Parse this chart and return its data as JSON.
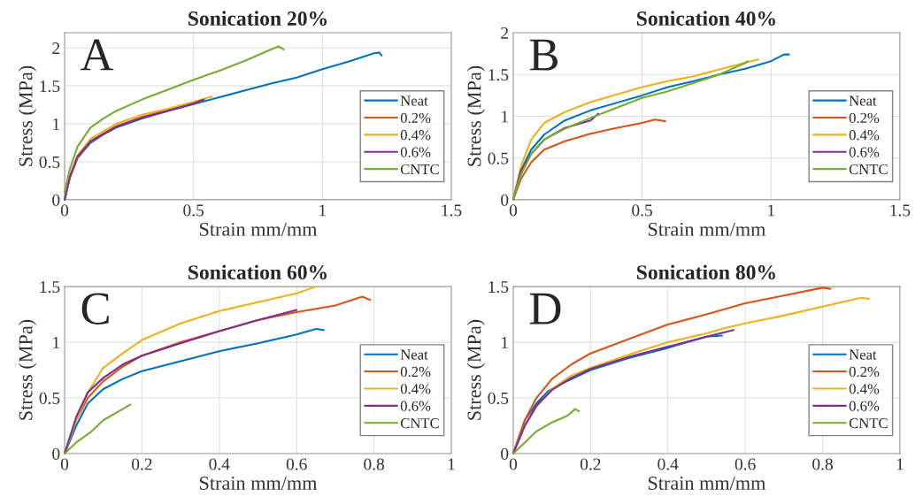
{
  "chart_data": [
    {
      "type": "line",
      "title": "Sonication 20%",
      "xlabel": "Strain mm/mm",
      "ylabel": "Stress (MPa)",
      "annotations": [
        "A"
      ],
      "xlim": [
        0,
        1.5
      ],
      "xticks": [
        0,
        0.5,
        1,
        1.5
      ],
      "ylim": [
        0,
        2.2
      ],
      "yticks": [
        0,
        0.5,
        1,
        1.5,
        2
      ],
      "grid": true,
      "legend": "right",
      "line_style": "solid",
      "series": [
        {
          "name": "Neat",
          "color": "#0072bd",
          "x": [
            0,
            0.02,
            0.05,
            0.1,
            0.15,
            0.2,
            0.3,
            0.4,
            0.5,
            0.6,
            0.7,
            0.8,
            0.9,
            1.0,
            1.1,
            1.2,
            1.22,
            1.23
          ],
          "values": [
            0,
            0.3,
            0.55,
            0.75,
            0.86,
            0.95,
            1.07,
            1.17,
            1.26,
            1.35,
            1.44,
            1.53,
            1.61,
            1.72,
            1.82,
            1.93,
            1.94,
            1.9
          ]
        },
        {
          "name": "0.2%",
          "color": "#d95319",
          "x": [
            0,
            0.02,
            0.05,
            0.1,
            0.2,
            0.3,
            0.4,
            0.5,
            0.53
          ],
          "values": [
            0,
            0.28,
            0.55,
            0.77,
            0.97,
            1.09,
            1.18,
            1.28,
            1.3
          ]
        },
        {
          "name": "0.4%",
          "color": "#edb120",
          "x": [
            0,
            0.02,
            0.05,
            0.1,
            0.2,
            0.3,
            0.4,
            0.5,
            0.57
          ],
          "values": [
            0,
            0.3,
            0.58,
            0.8,
            1.0,
            1.12,
            1.2,
            1.29,
            1.36
          ]
        },
        {
          "name": "0.6%",
          "color": "#7e2f8e",
          "x": [
            0,
            0.02,
            0.05,
            0.1,
            0.2,
            0.3,
            0.4,
            0.5,
            0.54
          ],
          "values": [
            0,
            0.3,
            0.57,
            0.77,
            0.96,
            1.08,
            1.17,
            1.27,
            1.32
          ]
        },
        {
          "name": "CNTC",
          "color": "#77ac30",
          "x": [
            0,
            0.02,
            0.05,
            0.1,
            0.15,
            0.2,
            0.3,
            0.4,
            0.5,
            0.6,
            0.7,
            0.8,
            0.83,
            0.85
          ],
          "values": [
            0.1,
            0.4,
            0.7,
            0.95,
            1.07,
            1.17,
            1.32,
            1.45,
            1.58,
            1.7,
            1.83,
            1.98,
            2.02,
            1.98
          ]
        }
      ]
    },
    {
      "type": "line",
      "title": "Sonication 40%",
      "xlabel": "Strain mm/mm",
      "ylabel": "Stress (MPa)",
      "annotations": [
        "B"
      ],
      "xlim": [
        0,
        1.5
      ],
      "xticks": [
        0,
        0.5,
        1,
        1.5
      ],
      "ylim": [
        0,
        2
      ],
      "yticks": [
        0,
        0.5,
        1,
        1.5,
        2
      ],
      "grid": true,
      "legend": "right",
      "line_style": "solid",
      "series": [
        {
          "name": "Neat",
          "color": "#0072bd",
          "x": [
            0,
            0.03,
            0.07,
            0.12,
            0.2,
            0.3,
            0.4,
            0.5,
            0.6,
            0.7,
            0.8,
            0.9,
            1.0,
            1.05,
            1.07
          ],
          "values": [
            0,
            0.35,
            0.6,
            0.78,
            0.95,
            1.07,
            1.16,
            1.25,
            1.35,
            1.42,
            1.5,
            1.57,
            1.66,
            1.74,
            1.74
          ]
        },
        {
          "name": "0.2%",
          "color": "#d95319",
          "x": [
            0,
            0.03,
            0.07,
            0.12,
            0.2,
            0.3,
            0.4,
            0.5,
            0.55,
            0.59
          ],
          "values": [
            0,
            0.25,
            0.45,
            0.6,
            0.7,
            0.79,
            0.86,
            0.92,
            0.96,
            0.94
          ]
        },
        {
          "name": "0.4%",
          "color": "#edb120",
          "x": [
            0,
            0.03,
            0.07,
            0.12,
            0.2,
            0.3,
            0.4,
            0.5,
            0.6,
            0.7,
            0.8,
            0.9,
            0.95
          ],
          "values": [
            0,
            0.4,
            0.72,
            0.92,
            1.05,
            1.17,
            1.26,
            1.35,
            1.42,
            1.48,
            1.56,
            1.64,
            1.68
          ]
        },
        {
          "name": "0.6%",
          "color": "#7e2f8e",
          "x": [
            0,
            0.03,
            0.07,
            0.12,
            0.2,
            0.3,
            0.33
          ],
          "values": [
            0,
            0.35,
            0.55,
            0.72,
            0.86,
            0.95,
            1.03
          ]
        },
        {
          "name": "CNTC",
          "color": "#77ac30",
          "x": [
            0,
            0.03,
            0.07,
            0.12,
            0.2,
            0.3,
            0.4,
            0.5,
            0.6,
            0.7,
            0.8,
            0.9,
            0.91
          ],
          "values": [
            0,
            0.3,
            0.55,
            0.72,
            0.85,
            0.98,
            1.1,
            1.22,
            1.3,
            1.4,
            1.5,
            1.64,
            1.66
          ]
        }
      ]
    },
    {
      "type": "line",
      "title": "Sonication 60%",
      "xlabel": "Strain mm/mm",
      "ylabel": "Stress (MPa)",
      "annotations": [
        "C"
      ],
      "xlim": [
        0,
        1
      ],
      "xticks": [
        0,
        0.2,
        0.4,
        0.6,
        0.8,
        1
      ],
      "ylim": [
        0,
        1.5
      ],
      "yticks": [
        0,
        0.5,
        1,
        1.5
      ],
      "grid": true,
      "legend": "right",
      "line_style": "solid",
      "series": [
        {
          "name": "Neat",
          "color": "#0072bd",
          "x": [
            0,
            0.03,
            0.06,
            0.1,
            0.15,
            0.2,
            0.3,
            0.4,
            0.5,
            0.6,
            0.65,
            0.67
          ],
          "values": [
            0,
            0.25,
            0.45,
            0.58,
            0.67,
            0.74,
            0.83,
            0.92,
            0.99,
            1.07,
            1.12,
            1.11
          ]
        },
        {
          "name": "0.2%",
          "color": "#d95319",
          "x": [
            0,
            0.03,
            0.06,
            0.1,
            0.15,
            0.2,
            0.3,
            0.4,
            0.5,
            0.6,
            0.7,
            0.77,
            0.79
          ],
          "values": [
            0,
            0.3,
            0.5,
            0.65,
            0.78,
            0.88,
            1.0,
            1.1,
            1.2,
            1.27,
            1.33,
            1.41,
            1.38
          ]
        },
        {
          "name": "0.4%",
          "color": "#edb120",
          "x": [
            0,
            0.03,
            0.06,
            0.1,
            0.15,
            0.2,
            0.3,
            0.4,
            0.5,
            0.6,
            0.65
          ],
          "values": [
            0,
            0.3,
            0.55,
            0.77,
            0.9,
            1.02,
            1.17,
            1.28,
            1.36,
            1.44,
            1.5
          ]
        },
        {
          "name": "0.6%",
          "color": "#7e2f8e",
          "x": [
            0,
            0.03,
            0.06,
            0.1,
            0.15,
            0.2,
            0.3,
            0.4,
            0.5,
            0.6
          ],
          "values": [
            0,
            0.33,
            0.55,
            0.68,
            0.8,
            0.88,
            0.99,
            1.1,
            1.2,
            1.29
          ]
        },
        {
          "name": "CNTC",
          "color": "#77ac30",
          "x": [
            0,
            0.03,
            0.07,
            0.1,
            0.14,
            0.17
          ],
          "values": [
            0,
            0.1,
            0.2,
            0.3,
            0.38,
            0.44
          ]
        }
      ]
    },
    {
      "type": "line",
      "title": "Sonication 80%",
      "xlabel": "Strain mm/mm",
      "ylabel": "Stress (MPa)",
      "annotations": [
        "D"
      ],
      "xlim": [
        0,
        1
      ],
      "xticks": [
        0,
        0.2,
        0.4,
        0.6,
        0.8,
        1
      ],
      "ylim": [
        0,
        1.5
      ],
      "yticks": [
        0,
        0.5,
        1,
        1.5
      ],
      "grid": true,
      "legend": "right",
      "line_style": "solid",
      "series": [
        {
          "name": "Neat",
          "color": "#0072bd",
          "x": [
            0,
            0.03,
            0.06,
            0.09,
            0.12,
            0.2,
            0.3,
            0.4,
            0.5,
            0.54
          ],
          "values": [
            0,
            0.3,
            0.45,
            0.56,
            0.62,
            0.75,
            0.86,
            0.95,
            1.05,
            1.06
          ]
        },
        {
          "name": "0.2%",
          "color": "#d95319",
          "x": [
            0,
            0.03,
            0.06,
            0.1,
            0.15,
            0.2,
            0.3,
            0.4,
            0.5,
            0.6,
            0.7,
            0.8,
            0.82
          ],
          "values": [
            0,
            0.3,
            0.5,
            0.67,
            0.8,
            0.9,
            1.03,
            1.16,
            1.25,
            1.35,
            1.42,
            1.49,
            1.48
          ]
        },
        {
          "name": "0.4%",
          "color": "#edb120",
          "x": [
            0,
            0.03,
            0.06,
            0.1,
            0.15,
            0.2,
            0.3,
            0.4,
            0.5,
            0.55,
            0.6,
            0.7,
            0.8,
            0.9,
            0.92
          ],
          "values": [
            0,
            0.25,
            0.42,
            0.58,
            0.7,
            0.77,
            0.89,
            1.0,
            1.08,
            1.13,
            1.17,
            1.24,
            1.32,
            1.4,
            1.39
          ]
        },
        {
          "name": "0.6%",
          "color": "#7e2f8e",
          "x": [
            0,
            0.03,
            0.06,
            0.1,
            0.15,
            0.2,
            0.3,
            0.4,
            0.5,
            0.57
          ],
          "values": [
            0,
            0.25,
            0.43,
            0.57,
            0.68,
            0.76,
            0.87,
            0.96,
            1.05,
            1.11
          ]
        },
        {
          "name": "CNTC",
          "color": "#77ac30",
          "x": [
            0,
            0.03,
            0.06,
            0.1,
            0.14,
            0.16,
            0.17
          ],
          "values": [
            0,
            0.1,
            0.2,
            0.28,
            0.34,
            0.4,
            0.38
          ]
        }
      ]
    }
  ]
}
